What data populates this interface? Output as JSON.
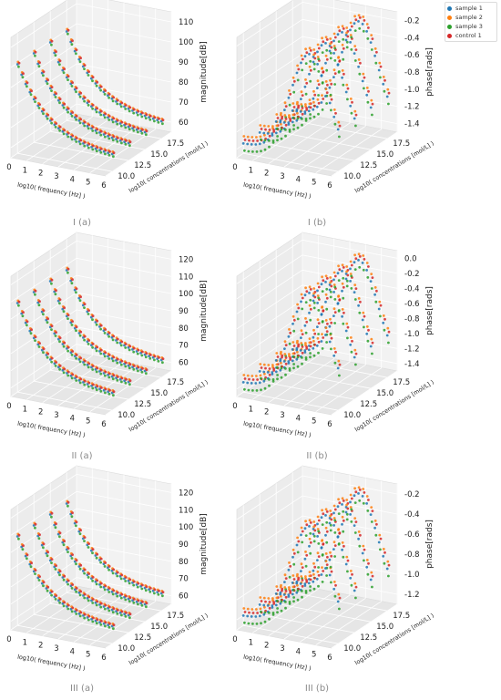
{
  "legend": {
    "items": [
      {
        "label": "sample 1",
        "color": "#1f77b4"
      },
      {
        "label": "sample 2",
        "color": "#ff7f0e"
      },
      {
        "label": "sample 3",
        "color": "#2ca02c"
      },
      {
        "label": "control 1",
        "color": "#d62728"
      }
    ]
  },
  "chart_data": [
    {
      "type": "scatter",
      "caption": "I (a)",
      "xlabel": "log10( frequency [Hz] )",
      "ylabel": "log10( concentrations [mol/L] )",
      "zlabel": "magnitude[dB]",
      "x_ticks": [
        "0",
        "1",
        "2",
        "3",
        "4",
        "5",
        "6"
      ],
      "y_ticks": [
        "10.0",
        "12.5",
        "15.0",
        "17.5"
      ],
      "z_ticks": [
        "60",
        "70",
        "80",
        "90",
        "100",
        "110"
      ],
      "xlim": [
        0,
        6
      ],
      "ylim": [
        9,
        19
      ],
      "zlim": [
        55,
        115
      ],
      "grid": true,
      "series_levels": [
        10,
        12.5,
        15,
        17.5
      ],
      "series": [
        {
          "name": "sample 1",
          "color": "#1f77b4"
        },
        {
          "name": "sample 2",
          "color": "#ff7f0e"
        },
        {
          "name": "sample 3",
          "color": "#2ca02c"
        },
        {
          "name": "control 1",
          "color": "#d62728"
        }
      ]
    },
    {
      "type": "scatter",
      "caption": "I (b)",
      "xlabel": "log10( frequency [Hz] )",
      "ylabel": "log10( concentrations [mol/L] )",
      "zlabel": "phase[rads]",
      "x_ticks": [
        "0",
        "1",
        "2",
        "3",
        "4",
        "5",
        "6"
      ],
      "y_ticks": [
        "10.0",
        "12.5",
        "15.0",
        "17.5"
      ],
      "z_ticks": [
        "-1.4",
        "-1.2",
        "-1.0",
        "-0.8",
        "-0.6",
        "-0.4",
        "-0.2"
      ],
      "xlim": [
        0,
        6
      ],
      "ylim": [
        9,
        19
      ],
      "zlim": [
        -1.5,
        -0.1
      ],
      "grid": true,
      "series_levels": [
        10,
        12.5,
        15,
        17.5
      ],
      "series": [
        {
          "name": "sample 1",
          "color": "#1f77b4"
        },
        {
          "name": "sample 2",
          "color": "#ff7f0e"
        },
        {
          "name": "sample 3",
          "color": "#2ca02c"
        },
        {
          "name": "control 1",
          "color": "#d62728"
        }
      ]
    },
    {
      "type": "scatter",
      "caption": "II (a)",
      "xlabel": "log10( frequency [Hz] )",
      "ylabel": "log10( concentrations [mol/L] )",
      "zlabel": "magnitude[dB]",
      "x_ticks": [
        "0",
        "1",
        "2",
        "3",
        "4",
        "5",
        "6"
      ],
      "y_ticks": [
        "10.0",
        "12.5",
        "15.0",
        "17.5"
      ],
      "z_ticks": [
        "60",
        "70",
        "80",
        "90",
        "100",
        "110",
        "120"
      ],
      "xlim": [
        0,
        6
      ],
      "ylim": [
        9,
        19
      ],
      "zlim": [
        55,
        125
      ],
      "grid": true,
      "series_levels": [
        10,
        12.5,
        15,
        17.5
      ],
      "series": [
        {
          "name": "sample 1",
          "color": "#1f77b4"
        },
        {
          "name": "sample 2",
          "color": "#ff7f0e"
        },
        {
          "name": "sample 3",
          "color": "#2ca02c"
        },
        {
          "name": "control 1",
          "color": "#d62728"
        }
      ]
    },
    {
      "type": "scatter",
      "caption": "II (b)",
      "xlabel": "log10( frequency [Hz] )",
      "ylabel": "log10( concentrations [mol/L] )",
      "zlabel": "phase[rads]",
      "x_ticks": [
        "0",
        "1",
        "2",
        "3",
        "4",
        "5",
        "6"
      ],
      "y_ticks": [
        "10.0",
        "12.5",
        "15.0",
        "17.5"
      ],
      "z_ticks": [
        "-1.4",
        "-1.2",
        "-1.0",
        "-0.8",
        "-0.6",
        "-0.4",
        "-0.2",
        "0.0"
      ],
      "xlim": [
        0,
        6
      ],
      "ylim": [
        9,
        19
      ],
      "zlim": [
        -1.5,
        0.1
      ],
      "grid": true,
      "series_levels": [
        10,
        12.5,
        15,
        17.5
      ],
      "series": [
        {
          "name": "sample 1",
          "color": "#1f77b4"
        },
        {
          "name": "sample 2",
          "color": "#ff7f0e"
        },
        {
          "name": "sample 3",
          "color": "#2ca02c"
        },
        {
          "name": "control 1",
          "color": "#d62728"
        }
      ]
    },
    {
      "type": "scatter",
      "caption": "III (a)",
      "xlabel": "log10( frequency [Hz] )",
      "ylabel": "log10( concentrations [mol/L] )",
      "zlabel": "magnitude[dB]",
      "x_ticks": [
        "0",
        "1",
        "2",
        "3",
        "4",
        "5",
        "6"
      ],
      "y_ticks": [
        "10.0",
        "12.5",
        "15.0",
        "17.5"
      ],
      "z_ticks": [
        "60",
        "70",
        "80",
        "90",
        "100",
        "110",
        "120"
      ],
      "xlim": [
        0,
        6
      ],
      "ylim": [
        9,
        19
      ],
      "zlim": [
        55,
        125
      ],
      "grid": true,
      "series_levels": [
        10,
        12.5,
        15,
        17.5
      ],
      "series": [
        {
          "name": "sample 1",
          "color": "#1f77b4"
        },
        {
          "name": "sample 2",
          "color": "#ff7f0e"
        },
        {
          "name": "sample 3",
          "color": "#2ca02c"
        },
        {
          "name": "control 1",
          "color": "#d62728"
        }
      ]
    },
    {
      "type": "scatter",
      "caption": "III (b)",
      "xlabel": "log10( frequency [Hz] )",
      "ylabel": "log10( concentrations [mol/L] )",
      "zlabel": "phase[rads]",
      "x_ticks": [
        "0",
        "1",
        "2",
        "3",
        "4",
        "5",
        "6"
      ],
      "y_ticks": [
        "10.0",
        "12.5",
        "15.0",
        "17.5"
      ],
      "z_ticks": [
        "-1.2",
        "-1.0",
        "-0.8",
        "-0.6",
        "-0.4",
        "-0.2"
      ],
      "xlim": [
        0,
        6
      ],
      "ylim": [
        9,
        19
      ],
      "zlim": [
        -1.3,
        -0.1
      ],
      "grid": true,
      "series_levels": [
        10,
        12.5,
        15,
        17.5
      ],
      "series": [
        {
          "name": "sample 1",
          "color": "#1f77b4"
        },
        {
          "name": "sample 2",
          "color": "#ff7f0e"
        },
        {
          "name": "sample 3",
          "color": "#2ca02c"
        },
        {
          "name": "control 1",
          "color": "#d62728"
        }
      ]
    }
  ]
}
